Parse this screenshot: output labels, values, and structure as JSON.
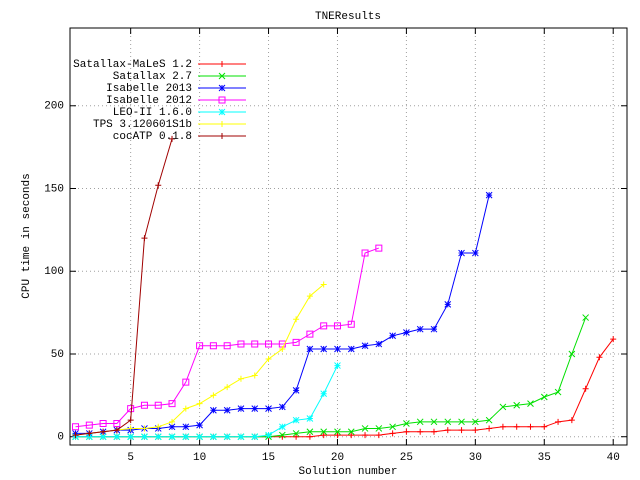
{
  "chart_data": {
    "type": "line",
    "title": "TNEResults",
    "x_label": "Solution number",
    "y_label": "CPU time in seconds",
    "x": [
      1,
      2,
      3,
      4,
      5,
      6,
      7,
      8,
      9,
      10,
      11,
      12,
      13,
      14,
      15,
      16,
      17,
      18,
      19,
      20,
      21,
      22,
      23,
      24,
      25,
      26,
      27,
      28,
      29,
      30,
      31,
      32,
      33,
      34,
      35,
      36,
      37,
      38,
      39,
      40
    ],
    "series": [
      {
        "name": "Satallax-MaLeS 1.2",
        "color": "#ff0000",
        "values": [
          0,
          0,
          0,
          0,
          0,
          0,
          0,
          0,
          0,
          0,
          0,
          0,
          0,
          0,
          0,
          0,
          0,
          0,
          1,
          1,
          1,
          1,
          1,
          2,
          3,
          3,
          3,
          4,
          4,
          4,
          5,
          6,
          6,
          6,
          6,
          9,
          10,
          29,
          48,
          59
        ]
      },
      {
        "name": "Satallax 2.7",
        "color": "#00e000",
        "values": [
          0,
          0,
          0,
          0,
          0,
          0,
          0,
          0,
          0,
          0,
          0,
          0,
          0,
          0,
          0,
          1,
          2,
          3,
          3,
          3,
          3,
          5,
          5,
          6,
          8,
          9,
          9,
          9,
          9,
          9,
          10,
          18,
          19,
          20,
          24,
          27,
          50,
          72,
          null,
          null
        ]
      },
      {
        "name": "Isabelle 2013",
        "color": "#0000ff",
        "values": [
          2,
          2,
          3,
          4,
          4,
          5,
          5,
          6,
          6,
          7,
          16,
          16,
          17,
          17,
          17,
          18,
          28,
          53,
          53,
          53,
          53,
          55,
          56,
          61,
          63,
          65,
          65,
          80,
          111,
          111,
          146,
          null,
          null,
          null,
          null,
          null,
          null,
          null,
          null,
          null
        ]
      },
      {
        "name": "Isabelle 2012",
        "color": "#ff00ff",
        "values": [
          6,
          7,
          8,
          8,
          17,
          19,
          19,
          20,
          33,
          55,
          55,
          55,
          56,
          56,
          56,
          56,
          57,
          62,
          67,
          67,
          68,
          111,
          114,
          null,
          null,
          null,
          null,
          null,
          null,
          null,
          null,
          null,
          null,
          null,
          null,
          null,
          null,
          null,
          null,
          null
        ]
      },
      {
        "name": "LEO-II 1.6.0",
        "color": "#00ffff",
        "values": [
          0,
          0,
          0,
          0,
          0,
          0,
          0,
          0,
          0,
          0,
          0,
          0,
          0,
          0,
          1,
          6,
          10,
          11,
          26,
          43,
          null,
          null,
          null,
          null,
          null,
          null,
          null,
          null,
          null,
          null,
          null,
          null,
          null,
          null,
          null,
          null,
          null,
          null,
          null,
          null
        ]
      },
      {
        "name": "TPS 3.120601S1b",
        "color": "#ffff00",
        "values": [
          1,
          2,
          3,
          4,
          5,
          5,
          6,
          9,
          17,
          20,
          25,
          30,
          35,
          37,
          47,
          53,
          71,
          85,
          92,
          null,
          null,
          null,
          null,
          null,
          null,
          null,
          null,
          null,
          null,
          null,
          null,
          null,
          null,
          null,
          null,
          null,
          null,
          null,
          null,
          null
        ]
      },
      {
        "name": "cocATP 0.1.8",
        "color": "#a00000",
        "values": [
          1,
          2,
          3,
          4,
          10,
          120,
          152,
          180,
          null,
          null,
          null,
          null,
          null,
          null,
          null,
          null,
          null,
          null,
          null,
          null,
          null,
          null,
          null,
          null,
          null,
          null,
          null,
          null,
          null,
          null,
          null,
          null,
          null,
          null,
          null,
          null,
          null,
          null,
          null,
          null
        ]
      }
    ],
    "xlim": [
      0.6,
      41
    ],
    "ylim": [
      -5,
      247
    ],
    "xticks": [
      5,
      10,
      15,
      20,
      25,
      30,
      35,
      40
    ],
    "yticks": [
      0,
      50,
      100,
      150,
      200
    ],
    "grid": true,
    "legend": "top-left"
  }
}
